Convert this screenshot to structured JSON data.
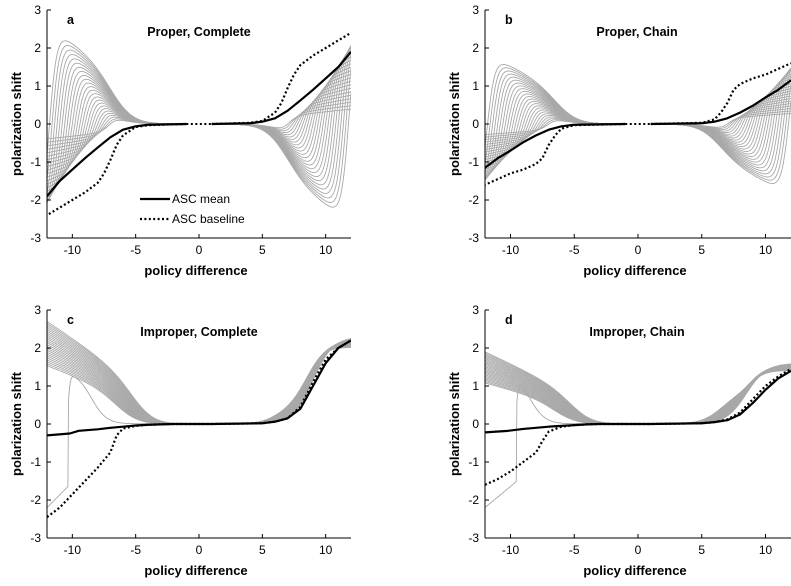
{
  "colors": {
    "fan": "#a8a8a8",
    "mean": "#000000",
    "baseline": "#000000",
    "axis": "#000000"
  },
  "legend": {
    "mean_label": "ASC mean",
    "baseline_label": "ASC baseline",
    "placement": "inside-bottom-left of panel a"
  },
  "chart_data": [
    {
      "type": "line",
      "letter": "a",
      "title": "Proper, Complete",
      "xlabel": "policy difference",
      "ylabel": "polarization shift",
      "xlim": [
        -12,
        12
      ],
      "ylim": [
        -3,
        3
      ],
      "xticks": [
        -10,
        -5,
        0,
        5,
        10
      ],
      "yticks": [
        -3,
        -2,
        -1,
        0,
        1,
        2,
        3
      ],
      "gap": [
        -1,
        1
      ],
      "fan": {
        "count": 25,
        "envelope_max": 2.6,
        "rise_start": 6.0,
        "crossover_min": 7.0,
        "crossover_max": 11.8,
        "flip_width": 0.6
      },
      "series": [
        {
          "name": "ASC mean",
          "style": "solid",
          "x": [
            1,
            4,
            5,
            6,
            7,
            8,
            9,
            10,
            11,
            12
          ],
          "y": [
            0,
            0.02,
            0.06,
            0.15,
            0.35,
            0.62,
            0.9,
            1.2,
            1.5,
            1.9
          ]
        },
        {
          "name": "ASC baseline",
          "style": "dotted",
          "x": [
            1,
            4,
            5,
            6,
            6.5,
            7,
            7.5,
            8,
            9,
            10,
            11,
            12
          ],
          "y": [
            0,
            0.03,
            0.08,
            0.3,
            0.55,
            0.95,
            1.3,
            1.55,
            1.8,
            2.0,
            2.2,
            2.4
          ]
        }
      ]
    },
    {
      "type": "line",
      "letter": "b",
      "title": "Proper, Chain",
      "xlabel": "policy difference",
      "ylabel": "polarization shift",
      "xlim": [
        -12,
        12
      ],
      "ylim": [
        -3,
        3
      ],
      "xticks": [
        -10,
        -5,
        0,
        5,
        10
      ],
      "yticks": [
        -3,
        -2,
        -1,
        0,
        1,
        2,
        3
      ],
      "gap": [
        -1,
        1
      ],
      "fan": {
        "count": 25,
        "envelope_max": 1.85,
        "rise_start": 5.5,
        "crossover_min": 7.0,
        "crossover_max": 11.8,
        "flip_width": 0.6
      },
      "series": [
        {
          "name": "ASC mean",
          "style": "solid",
          "x": [
            1,
            5,
            6,
            7,
            8,
            9,
            10,
            11,
            12
          ],
          "y": [
            0,
            0.02,
            0.06,
            0.15,
            0.3,
            0.48,
            0.7,
            0.9,
            1.15
          ]
        },
        {
          "name": "ASC baseline",
          "style": "dotted",
          "x": [
            1,
            5,
            6,
            6.5,
            7,
            7.5,
            8,
            9,
            10,
            11,
            12
          ],
          "y": [
            0,
            0.03,
            0.12,
            0.3,
            0.55,
            0.9,
            1.05,
            1.2,
            1.3,
            1.45,
            1.6
          ]
        }
      ]
    },
    {
      "type": "line",
      "letter": "c",
      "title": "Improper, Complete",
      "xlabel": "policy difference",
      "ylabel": "polarization shift",
      "xlim": [
        -12,
        12
      ],
      "ylim": [
        -3,
        3
      ],
      "xticks": [
        -10,
        -5,
        0,
        5,
        10
      ],
      "yticks": [
        -3,
        -2,
        -1,
        0,
        1,
        2,
        3
      ],
      "gap": [
        -1,
        1
      ],
      "fan": {
        "count": 25,
        "envelope_max": 2.7,
        "upper_max": 2.3,
        "upper_start": 6.0,
        "dip_max": 0.55,
        "flip_x": -10.3
      },
      "series": [
        {
          "name": "ASC mean",
          "style": "solid",
          "x": [
            -12,
            -10.2,
            -9.5,
            -8,
            -7,
            -6,
            -5,
            -4,
            -3,
            -2,
            -1,
            1,
            5,
            6,
            7,
            8,
            9,
            10,
            11,
            12
          ],
          "y": [
            -0.3,
            -0.25,
            -0.18,
            -0.14,
            -0.1,
            -0.07,
            -0.04,
            -0.02,
            -0.01,
            0,
            0,
            0,
            0.02,
            0.06,
            0.15,
            0.4,
            1.0,
            1.6,
            2.0,
            2.2
          ]
        },
        {
          "name": "ASC baseline",
          "style": "dotted",
          "x": [
            -12,
            -11,
            -10,
            -9,
            -8,
            -7,
            -6.5,
            -6,
            -5,
            -4,
            -3,
            -2,
            -1,
            1,
            5,
            6,
            7,
            8,
            9,
            10,
            11,
            12
          ],
          "y": [
            -2.45,
            -2.2,
            -1.85,
            -1.5,
            -1.15,
            -0.75,
            -0.3,
            -0.12,
            -0.05,
            -0.02,
            -0.01,
            0,
            0,
            0,
            0.02,
            0.06,
            0.15,
            0.45,
            1.1,
            1.7,
            2.0,
            2.2
          ]
        }
      ]
    },
    {
      "type": "line",
      "letter": "d",
      "title": "Improper, Chain",
      "xlabel": "policy difference",
      "ylabel": "polarization shift",
      "xlim": [
        -12,
        12
      ],
      "ylim": [
        -3,
        3
      ],
      "xticks": [
        -10,
        -5,
        0,
        5,
        10
      ],
      "yticks": [
        -3,
        -2,
        -1,
        0,
        1,
        2,
        3
      ],
      "gap": [
        -1,
        1
      ],
      "fan": {
        "count": 25,
        "envelope_max": 1.9,
        "upper_max": 1.6,
        "upper_start": 5.5,
        "dip_max": 0.4,
        "flip_x": -9.5
      },
      "series": [
        {
          "name": "ASC mean",
          "style": "solid",
          "x": [
            -12,
            -10.2,
            -9,
            -8,
            -7,
            -6,
            -5,
            -4,
            -3,
            -2,
            -1,
            1,
            5,
            6,
            7,
            8,
            9,
            10,
            11,
            12
          ],
          "y": [
            -0.22,
            -0.18,
            -0.13,
            -0.1,
            -0.07,
            -0.05,
            -0.03,
            -0.01,
            0,
            0,
            0,
            0,
            0.02,
            0.05,
            0.1,
            0.25,
            0.55,
            0.9,
            1.2,
            1.4
          ]
        },
        {
          "name": "ASC baseline",
          "style": "dotted",
          "x": [
            -12,
            -11,
            -10,
            -9,
            -8,
            -7.5,
            -7,
            -6,
            -5,
            -4,
            -3,
            -2,
            -1,
            1,
            5,
            6,
            7,
            8,
            9,
            10,
            11,
            12
          ],
          "y": [
            -1.6,
            -1.45,
            -1.25,
            -1.0,
            -0.75,
            -0.45,
            -0.2,
            -0.07,
            -0.03,
            -0.01,
            0,
            0,
            0,
            0,
            0.02,
            0.05,
            0.12,
            0.3,
            0.65,
            1.0,
            1.25,
            1.45
          ]
        }
      ]
    }
  ]
}
